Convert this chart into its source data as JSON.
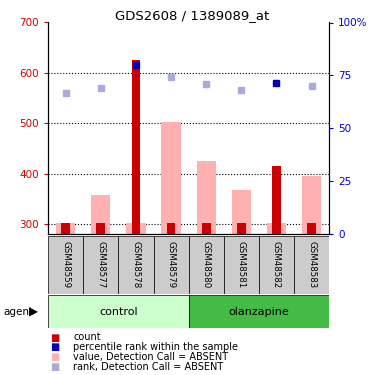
{
  "title": "GDS2608 / 1389089_at",
  "samples": [
    "GSM48559",
    "GSM48577",
    "GSM48578",
    "GSM48579",
    "GSM48580",
    "GSM48581",
    "GSM48582",
    "GSM48583"
  ],
  "red_bars": [
    302,
    302,
    625,
    302,
    302,
    302,
    415,
    302
  ],
  "pink_bars": [
    302,
    358,
    302,
    503,
    425,
    367,
    302,
    395
  ],
  "dark_blue_squares": [
    null,
    null,
    615,
    null,
    null,
    null,
    580,
    null
  ],
  "light_blue_squares": [
    560,
    570,
    null,
    592,
    578,
    567,
    null,
    575
  ],
  "ylim_left": [
    280,
    700
  ],
  "ylim_right": [
    0,
    100
  ],
  "yticks_left": [
    300,
    400,
    500,
    600,
    700
  ],
  "yticks_right": [
    0,
    25,
    50,
    75,
    100
  ],
  "color_red": "#cc0000",
  "color_pink": "#ffb0b0",
  "color_dark_blue": "#0000bb",
  "color_light_blue": "#aaaadd",
  "color_control_bg_light": "#ccffcc",
  "color_olanzapine_bg": "#44bb44",
  "color_sample_bg": "#cccccc",
  "ylabel_left_color": "#cc0000",
  "ylabel_right_color": "#0000cc",
  "dotted_lines": [
    300,
    400,
    500,
    600
  ],
  "legend_items": [
    {
      "color": "#cc0000",
      "label": "count"
    },
    {
      "color": "#0000bb",
      "label": "percentile rank within the sample"
    },
    {
      "color": "#ffb0b0",
      "label": "value, Detection Call = ABSENT"
    },
    {
      "color": "#aaaadd",
      "label": "rank, Detection Call = ABSENT"
    }
  ]
}
